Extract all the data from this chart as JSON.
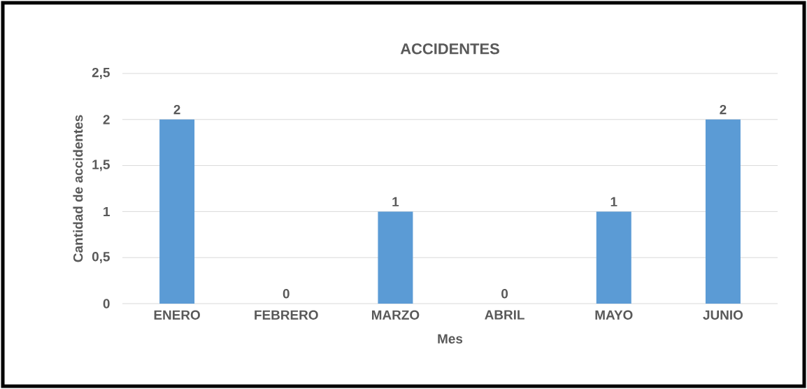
{
  "chart_data": {
    "type": "bar",
    "title": "ACCIDENTES",
    "xlabel": "Mes",
    "ylabel": "Cantidad de accidentes",
    "categories": [
      "ENERO",
      "FEBRERO",
      "MARZO",
      "ABRIL",
      "MAYO",
      "JUNIO"
    ],
    "values": [
      2,
      0,
      1,
      0,
      1,
      2
    ],
    "color": "#5b9bd5",
    "ylim": [
      0,
      2.5
    ],
    "yticks": [
      0,
      {
        "value": 0.5,
        "label": "0,5"
      },
      1,
      {
        "value": 1.5,
        "label": "1,5"
      },
      2,
      {
        "value": 2.5,
        "label": "2,5"
      }
    ],
    "grid": "y",
    "data_labels": true
  }
}
